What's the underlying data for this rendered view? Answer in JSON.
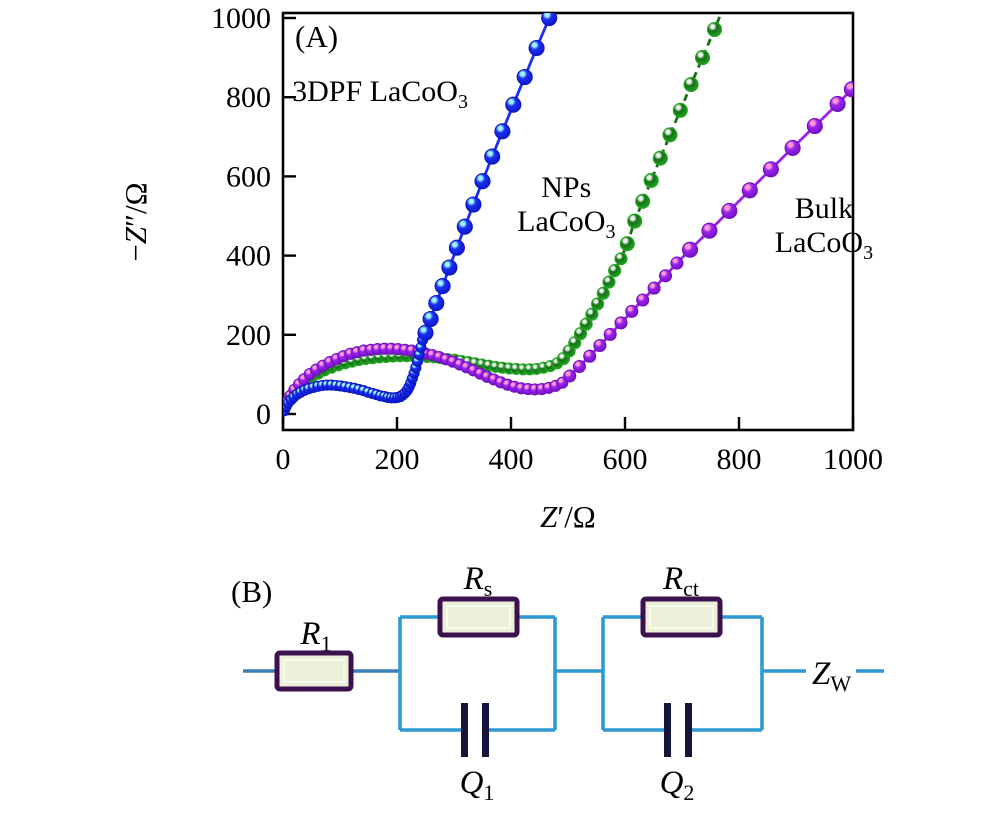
{
  "figure": {
    "panel_a_label": "(A)",
    "panel_b_label": "(B)"
  },
  "chart_data": {
    "type": "scatter",
    "title": "",
    "xlabel_segments": [
      {
        "t": "Z",
        "i": true
      },
      {
        "t": "′/Ω"
      }
    ],
    "ylabel_segments": [
      {
        "t": "−"
      },
      {
        "t": "Z",
        "i": true
      },
      {
        "t": "″/Ω"
      }
    ],
    "xlim": [
      0,
      1000
    ],
    "ylim": [
      0,
      1000
    ],
    "xticks": [
      0,
      200,
      400,
      600,
      800,
      1000
    ],
    "yticks": [
      0,
      200,
      400,
      600,
      800,
      1000
    ],
    "grid": false,
    "legend_position": "in-plot text annotations",
    "annotations": [
      {
        "name": "label-3dpf-lacoo3",
        "anchor": "start",
        "x": 16,
        "y": 790,
        "lines": [
          [
            {
              "t": "3DPF LaCoO"
            },
            {
              "t": "3",
              "sub": true
            }
          ]
        ]
      },
      {
        "name": "label-nps-lacoo3",
        "anchor": "middle",
        "x": 497,
        "y": 548,
        "lines": [
          [
            {
              "t": "NPs"
            }
          ],
          [
            {
              "t": "LaCoO"
            },
            {
              "t": "3",
              "sub": true
            }
          ]
        ]
      },
      {
        "name": "label-bulk-lacoo3",
        "anchor": "middle",
        "x": 949,
        "y": 495,
        "lines": [
          [
            {
              "t": "Bulk"
            }
          ],
          [
            {
              "t": "LaCoO"
            },
            {
              "t": "3",
              "sub": true
            }
          ]
        ]
      }
    ],
    "series": [
      {
        "name": "NPs LaCoO3",
        "color": "#157015",
        "edge": "#22a822",
        "highlight": "#e9f2e9",
        "dash": "7 5",
        "groups": [
          {
            "r": 5.5,
            "pts": [
              [
                2,
                10
              ],
              [
                6,
                24
              ],
              [
                11,
                38
              ],
              [
                17,
                51
              ],
              [
                24,
                63
              ],
              [
                32,
                74
              ],
              [
                41,
                84
              ],
              [
                51,
                94
              ],
              [
                62,
                102
              ],
              [
                73,
                110
              ],
              [
                85,
                117
              ],
              [
                97,
                123
              ],
              [
                109,
                128
              ],
              [
                121,
                132
              ],
              [
                133,
                136
              ],
              [
                145,
                139
              ],
              [
                157,
                141
              ],
              [
                169,
                143
              ],
              [
                181,
                144
              ],
              [
                193,
                145
              ],
              [
                205,
                146
              ],
              [
                217,
                146
              ],
              [
                229,
                146
              ],
              [
                241,
                145
              ],
              [
                253,
                144
              ],
              [
                265,
                143
              ],
              [
                277,
                141
              ],
              [
                289,
                139
              ],
              [
                301,
                137
              ],
              [
                313,
                134
              ],
              [
                325,
                131
              ],
              [
                337,
                128
              ],
              [
                349,
                125
              ],
              [
                361,
                122
              ],
              [
                373,
                119
              ],
              [
                385,
                117
              ],
              [
                397,
                115
              ],
              [
                409,
                114
              ],
              [
                421,
                113
              ],
              [
                433,
                113
              ],
              [
                445,
                114
              ],
              [
                457,
                117
              ],
              [
                469,
                121
              ],
              [
                481,
                128
              ]
            ]
          },
          {
            "r": 6,
            "pts": [
              [
                492,
                140
              ],
              [
                502,
                159
              ],
              [
                512,
                180
              ],
              [
                522,
                203
              ],
              [
                532,
                227
              ],
              [
                542,
                252
              ],
              [
                552,
                278
              ],
              [
                562,
                305
              ],
              [
                572,
                333
              ],
              [
                582,
                362
              ],
              [
                593,
                392
              ]
            ]
          },
          {
            "r": 7,
            "pts": [
              [
                604,
                430
              ],
              [
                617,
                487
              ],
              [
                631,
                537
              ],
              [
                646,
                590
              ],
              [
                662,
                646
              ],
              [
                679,
                705
              ],
              [
                697,
                767
              ],
              [
                716,
                832
              ],
              [
                736,
                900
              ],
              [
                757,
                971
              ],
              [
                775,
                1035
              ]
            ]
          }
        ],
        "line_ext": [
          [
            788,
            1090
          ]
        ]
      },
      {
        "name": "Bulk LaCoO3",
        "color": "#9a23ee",
        "edge": "#6f10bd",
        "highlight": "#ff9ad5",
        "dash": null,
        "groups": [
          {
            "r": 5.5,
            "pts": [
              [
                2,
                12
              ],
              [
                7,
                30
              ],
              [
                13,
                46
              ],
              [
                20,
                61
              ],
              [
                28,
                75
              ],
              [
                37,
                88
              ],
              [
                47,
                101
              ],
              [
                58,
                112
              ],
              [
                70,
                122
              ],
              [
                82,
                131
              ],
              [
                94,
                139
              ],
              [
                106,
                146
              ],
              [
                118,
                152
              ],
              [
                130,
                156
              ],
              [
                142,
                160
              ],
              [
                154,
                162
              ],
              [
                166,
                164
              ],
              [
                178,
                165
              ],
              [
                190,
                165
              ],
              [
                202,
                164
              ],
              [
                214,
                162
              ],
              [
                226,
                160
              ],
              [
                238,
                157
              ],
              [
                250,
                153
              ],
              [
                262,
                149
              ],
              [
                274,
                144
              ],
              [
                286,
                138
              ],
              [
                298,
                132
              ],
              [
                310,
                125
              ],
              [
                322,
                118
              ],
              [
                334,
                110
              ],
              [
                346,
                102
              ],
              [
                358,
                94
              ],
              [
                370,
                87
              ],
              [
                382,
                80
              ],
              [
                394,
                74
              ],
              [
                406,
                69
              ],
              [
                418,
                65
              ],
              [
                430,
                63
              ],
              [
                442,
                62
              ],
              [
                454,
                63
              ],
              [
                466,
                66
              ],
              [
                478,
                71
              ],
              [
                490,
                79
              ]
            ]
          },
          {
            "r": 6,
            "pts": [
              [
                503,
                96
              ],
              [
                520,
                120
              ],
              [
                538,
                146
              ],
              [
                556,
                173
              ],
              [
                574,
                201
              ],
              [
                593,
                230
              ],
              [
                612,
                259
              ],
              [
                631,
                288
              ],
              [
                651,
                318
              ],
              [
                671,
                349
              ],
              [
                691,
                381
              ]
            ]
          },
          {
            "r": 7.5,
            "pts": [
              [
                714,
                415
              ],
              [
                748,
                463
              ],
              [
                783,
                513
              ],
              [
                819,
                565
              ],
              [
                856,
                618
              ],
              [
                894,
                672
              ],
              [
                933,
                727
              ],
              [
                973,
                783
              ],
              [
                998,
                820
              ]
            ]
          }
        ],
        "line_ext": []
      },
      {
        "name": "3DPF LaCoO3",
        "color": "#1b2ff2",
        "edge": "#0a16c0",
        "highlight": "#9df3ff",
        "dash": null,
        "groups": [
          {
            "r": 5,
            "pts": [
              [
                2,
                8
              ],
              [
                5,
                18
              ],
              [
                9,
                28
              ],
              [
                14,
                36
              ],
              [
                19,
                43
              ],
              [
                25,
                50
              ],
              [
                31,
                55
              ],
              [
                38,
                60
              ],
              [
                45,
                64
              ],
              [
                53,
                67
              ],
              [
                61,
                70
              ],
              [
                69,
                72
              ],
              [
                77,
                73
              ],
              [
                85,
                73
              ],
              [
                93,
                72
              ],
              [
                101,
                71
              ],
              [
                109,
                69
              ],
              [
                117,
                67
              ],
              [
                125,
                65
              ],
              [
                133,
                62
              ],
              [
                141,
                59
              ],
              [
                149,
                55
              ],
              [
                157,
                52
              ],
              [
                164,
                49
              ],
              [
                171,
                46
              ],
              [
                178,
                44
              ],
              [
                184,
                42
              ],
              [
                190,
                41
              ],
              [
                196,
                41
              ],
              [
                201,
                42
              ],
              [
                206,
                44
              ],
              [
                210,
                48
              ],
              [
                214,
                53
              ],
              [
                218,
                60
              ],
              [
                221,
                68
              ],
              [
                224,
                78
              ],
              [
                227,
                90
              ],
              [
                230,
                103
              ],
              [
                233,
                117
              ],
              [
                236,
                133
              ],
              [
                239,
                150
              ],
              [
                242,
                168
              ],
              [
                245,
                187
              ]
            ]
          },
          {
            "r": 7.5,
            "pts": [
              [
                250,
                205
              ],
              [
                259,
                240
              ],
              [
                269,
                280
              ],
              [
                280,
                323
              ],
              [
                292,
                370
              ],
              [
                305,
                420
              ],
              [
                319,
                473
              ],
              [
                334,
                529
              ],
              [
                350,
                588
              ],
              [
                367,
                650
              ],
              [
                385,
                714
              ],
              [
                404,
                781
              ],
              [
                424,
                851
              ],
              [
                445,
                924
              ],
              [
                467,
                1000
              ]
            ]
          }
        ],
        "line_ext": [
          [
            480,
            1060
          ]
        ]
      }
    ]
  },
  "circuit": {
    "wire_color": "#2d9ad4",
    "lead_color": "#3b7fb5",
    "resistor_fill": "#edf0d8",
    "resistor_border": "#3d1050",
    "capacitor_color": "#141538",
    "labels": {
      "r1": [
        {
          "t": "R",
          "i": true
        },
        {
          "t": "1",
          "sub": true
        }
      ],
      "rs": [
        {
          "t": "R",
          "i": true
        },
        {
          "t": "s",
          "sub": true
        }
      ],
      "rct": [
        {
          "t": "R",
          "i": true
        },
        {
          "t": "ct",
          "sub": true
        }
      ],
      "q1": [
        {
          "t": "Q",
          "i": true
        },
        {
          "t": "1",
          "sub": true
        }
      ],
      "q2": [
        {
          "t": "Q",
          "i": true
        },
        {
          "t": "2",
          "sub": true
        }
      ],
      "zw": [
        {
          "t": "Z",
          "i": true
        },
        {
          "t": "W",
          "sub": true
        }
      ]
    }
  }
}
